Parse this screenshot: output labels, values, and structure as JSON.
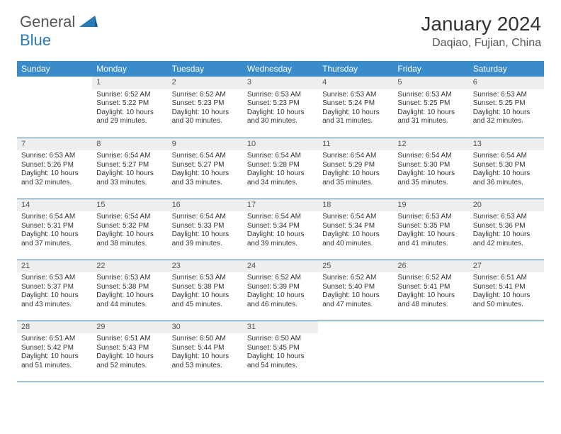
{
  "brand": {
    "text1": "General",
    "text2": "Blue",
    "text1_color": "#555555",
    "text2_color": "#2a7ab8",
    "icon_color": "#2a7ab8"
  },
  "title": "January 2024",
  "location": "Daqiao, Fujian, China",
  "colors": {
    "header_bg": "#3a8bc9",
    "header_text": "#ffffff",
    "daynum_bg": "#eceeef",
    "daynum_text": "#555555",
    "rule": "#3a78a8",
    "body_text": "#333333"
  },
  "weekdays": [
    "Sunday",
    "Monday",
    "Tuesday",
    "Wednesday",
    "Thursday",
    "Friday",
    "Saturday"
  ],
  "first_day_index": 1,
  "days": [
    {
      "n": 1,
      "sunrise": "6:52 AM",
      "sunset": "5:22 PM",
      "daylight": "10 hours and 29 minutes."
    },
    {
      "n": 2,
      "sunrise": "6:52 AM",
      "sunset": "5:23 PM",
      "daylight": "10 hours and 30 minutes."
    },
    {
      "n": 3,
      "sunrise": "6:53 AM",
      "sunset": "5:23 PM",
      "daylight": "10 hours and 30 minutes."
    },
    {
      "n": 4,
      "sunrise": "6:53 AM",
      "sunset": "5:24 PM",
      "daylight": "10 hours and 31 minutes."
    },
    {
      "n": 5,
      "sunrise": "6:53 AM",
      "sunset": "5:25 PM",
      "daylight": "10 hours and 31 minutes."
    },
    {
      "n": 6,
      "sunrise": "6:53 AM",
      "sunset": "5:25 PM",
      "daylight": "10 hours and 32 minutes."
    },
    {
      "n": 7,
      "sunrise": "6:53 AM",
      "sunset": "5:26 PM",
      "daylight": "10 hours and 32 minutes."
    },
    {
      "n": 8,
      "sunrise": "6:54 AM",
      "sunset": "5:27 PM",
      "daylight": "10 hours and 33 minutes."
    },
    {
      "n": 9,
      "sunrise": "6:54 AM",
      "sunset": "5:27 PM",
      "daylight": "10 hours and 33 minutes."
    },
    {
      "n": 10,
      "sunrise": "6:54 AM",
      "sunset": "5:28 PM",
      "daylight": "10 hours and 34 minutes."
    },
    {
      "n": 11,
      "sunrise": "6:54 AM",
      "sunset": "5:29 PM",
      "daylight": "10 hours and 35 minutes."
    },
    {
      "n": 12,
      "sunrise": "6:54 AM",
      "sunset": "5:30 PM",
      "daylight": "10 hours and 35 minutes."
    },
    {
      "n": 13,
      "sunrise": "6:54 AM",
      "sunset": "5:30 PM",
      "daylight": "10 hours and 36 minutes."
    },
    {
      "n": 14,
      "sunrise": "6:54 AM",
      "sunset": "5:31 PM",
      "daylight": "10 hours and 37 minutes."
    },
    {
      "n": 15,
      "sunrise": "6:54 AM",
      "sunset": "5:32 PM",
      "daylight": "10 hours and 38 minutes."
    },
    {
      "n": 16,
      "sunrise": "6:54 AM",
      "sunset": "5:33 PM",
      "daylight": "10 hours and 39 minutes."
    },
    {
      "n": 17,
      "sunrise": "6:54 AM",
      "sunset": "5:34 PM",
      "daylight": "10 hours and 39 minutes."
    },
    {
      "n": 18,
      "sunrise": "6:54 AM",
      "sunset": "5:34 PM",
      "daylight": "10 hours and 40 minutes."
    },
    {
      "n": 19,
      "sunrise": "6:53 AM",
      "sunset": "5:35 PM",
      "daylight": "10 hours and 41 minutes."
    },
    {
      "n": 20,
      "sunrise": "6:53 AM",
      "sunset": "5:36 PM",
      "daylight": "10 hours and 42 minutes."
    },
    {
      "n": 21,
      "sunrise": "6:53 AM",
      "sunset": "5:37 PM",
      "daylight": "10 hours and 43 minutes."
    },
    {
      "n": 22,
      "sunrise": "6:53 AM",
      "sunset": "5:38 PM",
      "daylight": "10 hours and 44 minutes."
    },
    {
      "n": 23,
      "sunrise": "6:53 AM",
      "sunset": "5:38 PM",
      "daylight": "10 hours and 45 minutes."
    },
    {
      "n": 24,
      "sunrise": "6:52 AM",
      "sunset": "5:39 PM",
      "daylight": "10 hours and 46 minutes."
    },
    {
      "n": 25,
      "sunrise": "6:52 AM",
      "sunset": "5:40 PM",
      "daylight": "10 hours and 47 minutes."
    },
    {
      "n": 26,
      "sunrise": "6:52 AM",
      "sunset": "5:41 PM",
      "daylight": "10 hours and 48 minutes."
    },
    {
      "n": 27,
      "sunrise": "6:51 AM",
      "sunset": "5:41 PM",
      "daylight": "10 hours and 50 minutes."
    },
    {
      "n": 28,
      "sunrise": "6:51 AM",
      "sunset": "5:42 PM",
      "daylight": "10 hours and 51 minutes."
    },
    {
      "n": 29,
      "sunrise": "6:51 AM",
      "sunset": "5:43 PM",
      "daylight": "10 hours and 52 minutes."
    },
    {
      "n": 30,
      "sunrise": "6:50 AM",
      "sunset": "5:44 PM",
      "daylight": "10 hours and 53 minutes."
    },
    {
      "n": 31,
      "sunrise": "6:50 AM",
      "sunset": "5:45 PM",
      "daylight": "10 hours and 54 minutes."
    }
  ],
  "labels": {
    "sunrise": "Sunrise:",
    "sunset": "Sunset:",
    "daylight": "Daylight:"
  }
}
